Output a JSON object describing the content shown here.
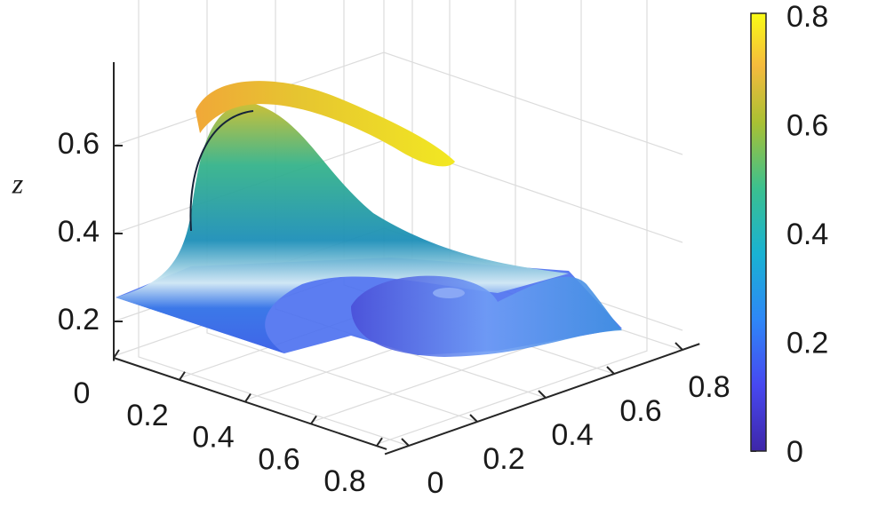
{
  "chart_data": {
    "type": "surface",
    "zlabel": "z",
    "xlim": [
      0,
      0.83
    ],
    "xticks": [
      0,
      0.2,
      0.4,
      0.6,
      0.8
    ],
    "ylim": [
      -0.07,
      0.85
    ],
    "yticks": [
      0,
      0.2,
      0.4,
      0.6,
      0.8
    ],
    "zlim": [
      0.11,
      0.79
    ],
    "zticks": [
      0.2,
      0.4,
      0.6
    ],
    "grid": true,
    "colorbar": {
      "clim": [
        0,
        0.8
      ],
      "ticks": [
        0,
        0.2,
        0.4,
        0.6,
        0.8
      ]
    }
  }
}
